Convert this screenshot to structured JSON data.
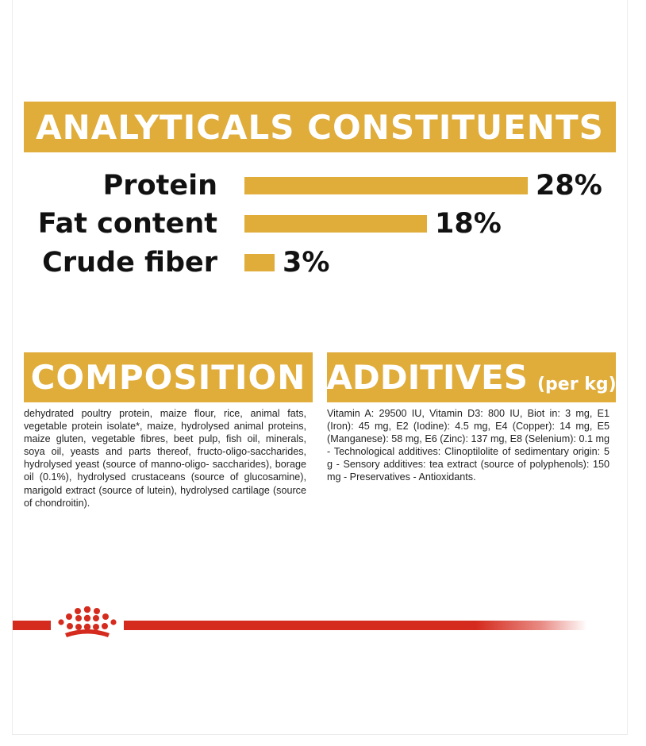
{
  "analytics": {
    "title": "ANALYTICALS CONSTITUENTS",
    "rows": [
      {
        "label": "Protein",
        "value": 28,
        "pct_text": "28%"
      },
      {
        "label": "Fat content",
        "value": 18,
        "pct_text": "18%"
      },
      {
        "label": "Crude fiber",
        "value": 3,
        "pct_text": "3%"
      }
    ]
  },
  "composition": {
    "title": "COMPOSITION",
    "text": "dehydrated poultry protein, maize flour, rice, animal fats, vegetable protein isolate*, maize, hydrolysed animal proteins, maize gluten, vegetable fibres, beet pulp, fish oil, minerals, soya oil, yeasts and parts thereof, fructo-oligo-saccharides, hydrolysed yeast (source of manno-oligo- saccharides), borage oil (0.1%), hydrolysed crustaceans (source of glucosamine), marigold extract (source of lutein), hydrolysed cartilage (source of chondroitin)."
  },
  "additives": {
    "title": "ADDITIVES",
    "unit": "(per kg)",
    "text": "Vitamin A: 29500 IU, Vitamin D3: 800 IU, Biot in: 3 mg, E1 (Iron): 45 mg, E2 (Iodine): 4.5 mg, E4 (Copper): 14 mg, E5 (Manganese): 58 mg, E6 (Zinc): 137 mg, E8 (Selenium): 0.1 mg - Technological additives: Clinoptilolite of sedimentary origin: 5 g - Sensory additives: tea extract (source of polyphenols): 150 mg - Preservatives - Antioxidants."
  },
  "brand": {
    "logo_icon": "royal-canin-crown-icon",
    "accent_color": "#e0ac3a",
    "brand_color": "#d52b1e"
  }
}
